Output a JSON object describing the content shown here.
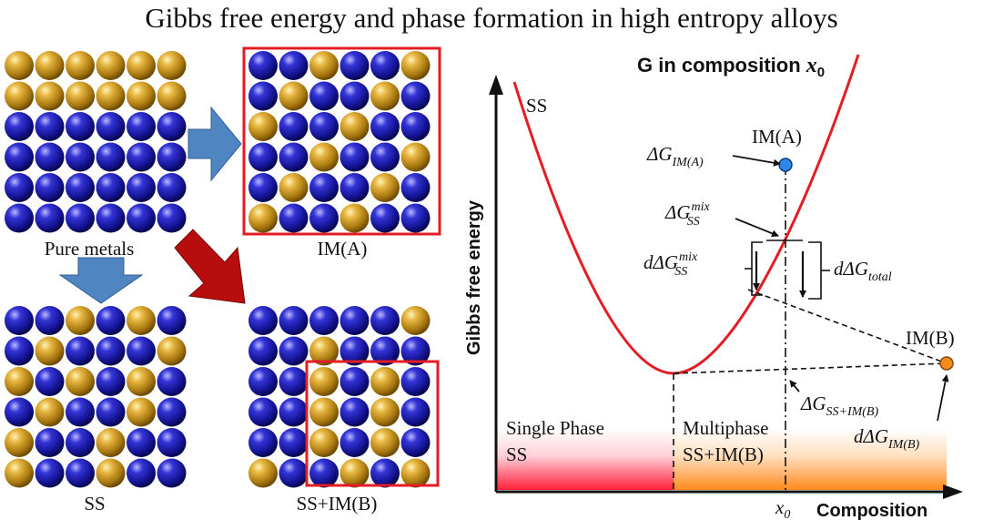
{
  "title": "Gibbs free energy and phase formation in high entropy alloys",
  "colors": {
    "gold_atom": "#c9961a",
    "blue_atom": "#1a1aa6",
    "arrow_blue": "#4f86c2",
    "arrow_red": "#b80d0d",
    "curve_red": "#e41d24",
    "box_red": "#e41d24",
    "point_blue": "#2f87e8",
    "point_orange": "#f28a1e"
  },
  "lattices": {
    "pure_metals": {
      "label": "Pure metals",
      "grid": [
        "GGGGGG",
        "GGGGGG",
        "BBBBBB",
        "BBBBBB",
        "BBBBBB",
        "BBBBBB"
      ]
    },
    "im_a": {
      "label": "IM(A)",
      "grid": [
        "BBGBBG",
        "BGBBGB",
        "GBBGBB",
        "BBGBBG",
        "BGBBGB",
        "GBBGBB"
      ]
    },
    "ss": {
      "label": "SS",
      "grid": [
        "BBGBGB",
        "BGBBBG",
        "GBGBGB",
        "BGBBGB",
        "GBBGBB",
        "GBBGBB"
      ]
    },
    "ss_im_b": {
      "label": "SS+IM(B)",
      "grid": [
        "BBBBBG",
        "BBGBBB",
        "BBGBGB",
        "BBGBGB",
        "BBGBGB",
        "GBBGBG"
      ]
    }
  },
  "graph": {
    "title_prefix": "G in composition ",
    "title_var": "x",
    "title_sub": "0",
    "y_axis_label": "Gibbs free energy",
    "x_axis_label": "Composition",
    "x0_var": "x",
    "x0_sub": "0",
    "curve_label": "SS",
    "point_a_label": "IM(A)",
    "point_b_label": "IM(B)",
    "region_single_line1": "Single Phase",
    "region_single_line2": "SS",
    "region_multi_line1": "Multiphase",
    "region_multi_line2": "SS+IM(B)",
    "dg_im_a": {
      "main": "ΔG",
      "sub": "IM(A)"
    },
    "dg_ss_mix": {
      "main": "ΔG",
      "sub": "SS",
      "sup": "mix"
    },
    "d_dg_ss_mix": {
      "main": "dΔG",
      "sub": "SS",
      "sup": "mix"
    },
    "d_dg_total": {
      "main": "dΔG",
      "sub": "total"
    },
    "dg_ss_im_b": {
      "main": "ΔG",
      "sub": "SS+IM(B)"
    },
    "d_dg_im_b": {
      "main": "dΔG",
      "sub": "IM(B)"
    }
  }
}
